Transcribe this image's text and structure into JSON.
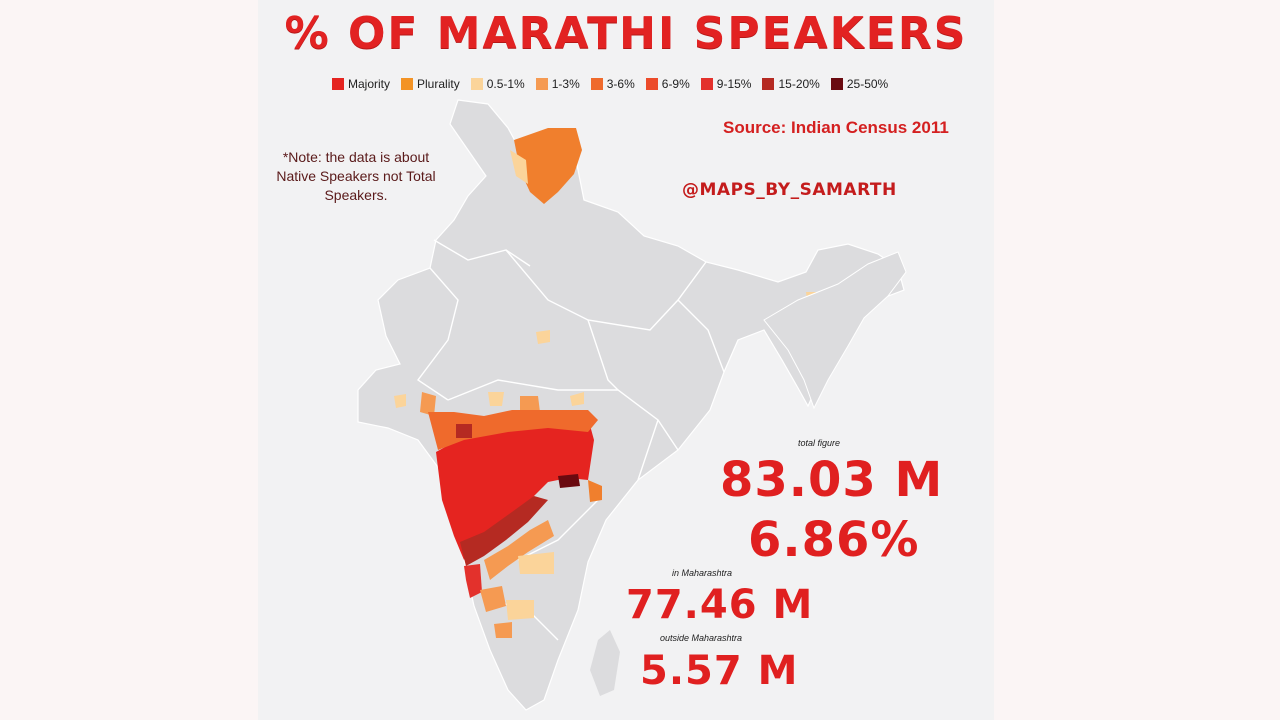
{
  "title": "% OF MARATHI SPEAKERS",
  "legend": [
    {
      "label": "Majority",
      "color": "#e52420"
    },
    {
      "label": "Plurality",
      "color": "#f39325"
    },
    {
      "label": "0.5-1%",
      "color": "#fbd49a"
    },
    {
      "label": "1-3%",
      "color": "#f59a52"
    },
    {
      "label": "3-6%",
      "color": "#ef6a2c"
    },
    {
      "label": "6-9%",
      "color": "#ec4b2a"
    },
    {
      "label": "9-15%",
      "color": "#e3312c"
    },
    {
      "label": "15-20%",
      "color": "#b52a22"
    },
    {
      "label": "25-50%",
      "color": "#6a0a10"
    }
  ],
  "source": "Source: Indian Census 2011",
  "note": "*Note: the data is about Native Speakers not Total Speakers.",
  "handle": "@MAPS_BY_SAMARTH",
  "stats": {
    "total_label": "total figure",
    "total_value": "83.03 M",
    "total_percent": "6.86%",
    "in_label": "in Maharashtra",
    "in_value": "77.46 M",
    "out_label": "outside Maharashtra",
    "out_value": "5.57 M"
  }
}
